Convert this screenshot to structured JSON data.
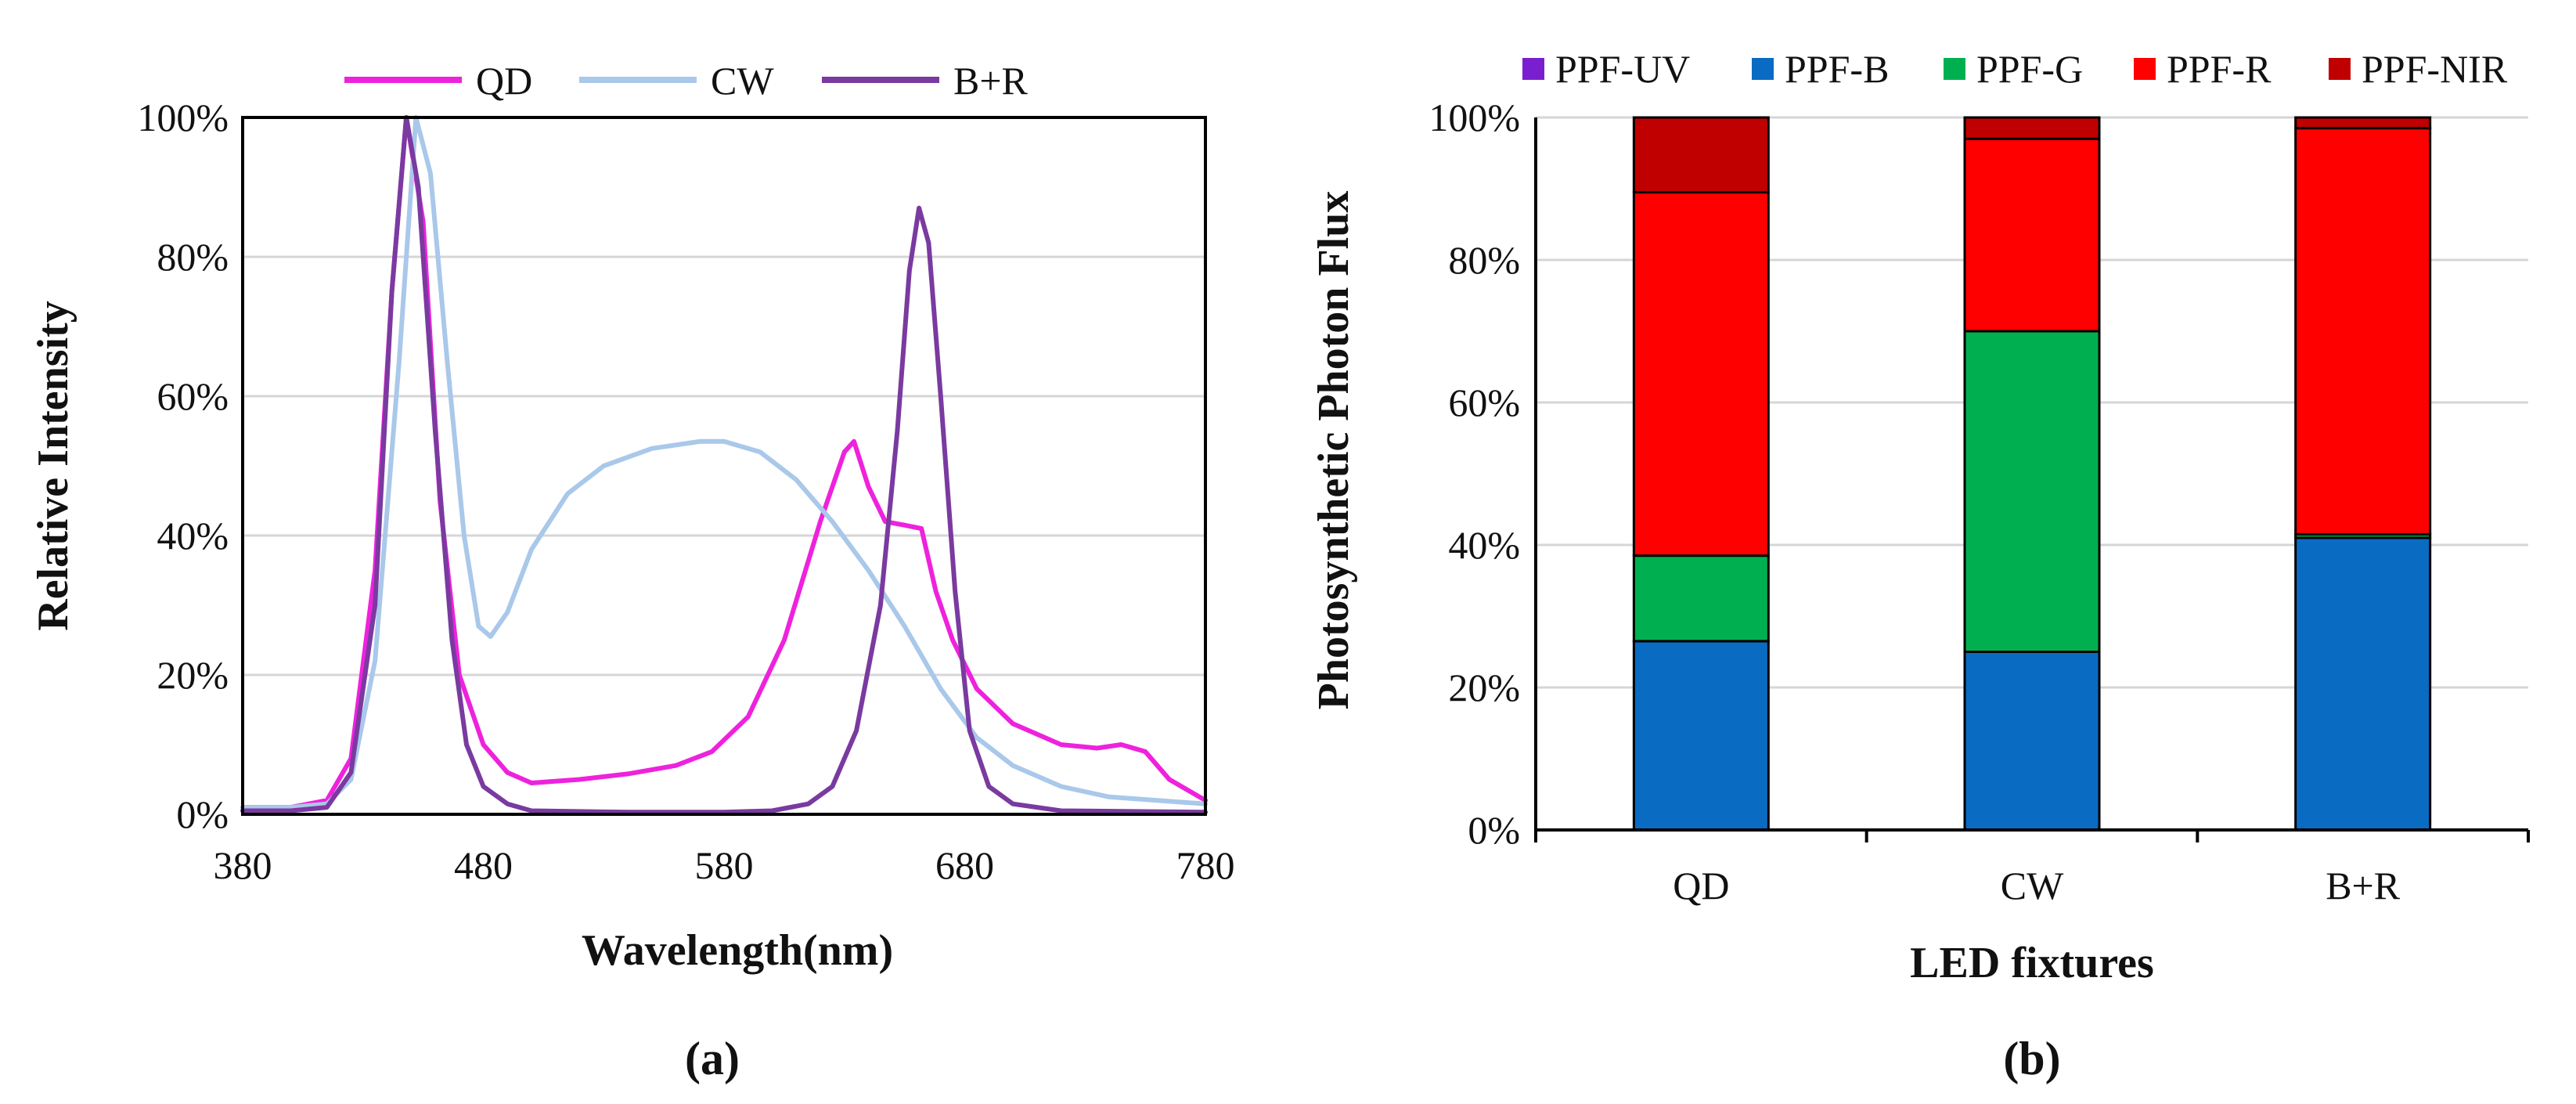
{
  "figure": {
    "caption_a": "(a)",
    "caption_b": "(b)"
  },
  "colors": {
    "qd": "#ee22dd",
    "cw": "#a9c8ea",
    "br": "#7a3aa0",
    "ppf_uv": "#7a1fd0",
    "ppf_b": "#0a6bc2",
    "ppf_g": "#00b050",
    "ppf_r": "#ff0000",
    "ppf_nir": "#c00000",
    "grid": "#d6d6d6",
    "axis": "#000000"
  },
  "chart_data": [
    {
      "type": "line",
      "title": "",
      "xlabel": "Wavelength(nm)",
      "ylabel": "Relative Intensity",
      "xlim": [
        380,
        780
      ],
      "ylim": [
        0,
        100
      ],
      "x_ticks": [
        "380",
        "480",
        "580",
        "680",
        "780"
      ],
      "y_ticks": [
        "0%",
        "20%",
        "40%",
        "60%",
        "80%",
        "100%"
      ],
      "grid": true,
      "legend": "top",
      "series": [
        {
          "name": "QD",
          "color_key": "qd",
          "points": [
            [
              380,
              1
            ],
            [
              400,
              1
            ],
            [
              415,
              2
            ],
            [
              425,
              8
            ],
            [
              435,
              35
            ],
            [
              442,
              75
            ],
            [
              448,
              100
            ],
            [
              455,
              85
            ],
            [
              462,
              45
            ],
            [
              470,
              20
            ],
            [
              480,
              10
            ],
            [
              490,
              6
            ],
            [
              500,
              4.5
            ],
            [
              520,
              5
            ],
            [
              540,
              5.8
            ],
            [
              560,
              7
            ],
            [
              575,
              9
            ],
            [
              590,
              14
            ],
            [
              605,
              25
            ],
            [
              620,
              42
            ],
            [
              630,
              52
            ],
            [
              634,
              53.5
            ],
            [
              640,
              47
            ],
            [
              647,
              42
            ],
            [
              655,
              41.5
            ],
            [
              662,
              41
            ],
            [
              668,
              32
            ],
            [
              675,
              25
            ],
            [
              685,
              18
            ],
            [
              700,
              13
            ],
            [
              720,
              10
            ],
            [
              735,
              9.5
            ],
            [
              745,
              10
            ],
            [
              755,
              9
            ],
            [
              765,
              5
            ],
            [
              780,
              2
            ]
          ]
        },
        {
          "name": "CW",
          "color_key": "cw",
          "points": [
            [
              380,
              1
            ],
            [
              400,
              1
            ],
            [
              415,
              1.5
            ],
            [
              425,
              5
            ],
            [
              435,
              22
            ],
            [
              445,
              65
            ],
            [
              452,
              100
            ],
            [
              458,
              92
            ],
            [
              465,
              65
            ],
            [
              472,
              40
            ],
            [
              478,
              27
            ],
            [
              483,
              25.5
            ],
            [
              490,
              29
            ],
            [
              500,
              38
            ],
            [
              515,
              46
            ],
            [
              530,
              50
            ],
            [
              550,
              52.5
            ],
            [
              570,
              53.5
            ],
            [
              580,
              53.5
            ],
            [
              595,
              52
            ],
            [
              610,
              48
            ],
            [
              625,
              42
            ],
            [
              640,
              35
            ],
            [
              655,
              27
            ],
            [
              670,
              18
            ],
            [
              685,
              11
            ],
            [
              700,
              7
            ],
            [
              720,
              4
            ],
            [
              740,
              2.5
            ],
            [
              760,
              2
            ],
            [
              780,
              1.5
            ]
          ]
        },
        {
          "name": "B+R",
          "color_key": "br",
          "points": [
            [
              380,
              0.5
            ],
            [
              400,
              0.5
            ],
            [
              415,
              1
            ],
            [
              425,
              6
            ],
            [
              435,
              30
            ],
            [
              442,
              75
            ],
            [
              448,
              100
            ],
            [
              453,
              90
            ],
            [
              460,
              55
            ],
            [
              467,
              25
            ],
            [
              473,
              10
            ],
            [
              480,
              4
            ],
            [
              490,
              1.5
            ],
            [
              500,
              0.5
            ],
            [
              540,
              0.3
            ],
            [
              580,
              0.3
            ],
            [
              600,
              0.5
            ],
            [
              615,
              1.5
            ],
            [
              625,
              4
            ],
            [
              635,
              12
            ],
            [
              645,
              30
            ],
            [
              652,
              55
            ],
            [
              657,
              78
            ],
            [
              661,
              87
            ],
            [
              665,
              82
            ],
            [
              670,
              60
            ],
            [
              676,
              32
            ],
            [
              682,
              12
            ],
            [
              690,
              4
            ],
            [
              700,
              1.5
            ],
            [
              720,
              0.5
            ],
            [
              780,
              0.3
            ]
          ]
        }
      ]
    },
    {
      "type": "bar",
      "stacked": true,
      "xlabel": "LED fixtures",
      "ylabel": "Photosynthetic Photon Flux",
      "ylim": [
        0,
        100
      ],
      "y_ticks": [
        "0%",
        "20%",
        "40%",
        "60%",
        "80%",
        "100%"
      ],
      "grid": true,
      "legend": "top",
      "categories": [
        "QD",
        "CW",
        "B+R"
      ],
      "series": [
        {
          "name": "PPF-UV",
          "color_key": "ppf_uv",
          "values": [
            0,
            0,
            0
          ]
        },
        {
          "name": "PPF-B",
          "color_key": "ppf_b",
          "values": [
            26.5,
            25,
            41
          ]
        },
        {
          "name": "PPF-G",
          "color_key": "ppf_g",
          "values": [
            12,
            45,
            0.5
          ]
        },
        {
          "name": "PPF-R",
          "color_key": "ppf_r",
          "values": [
            51,
            27,
            57
          ]
        },
        {
          "name": "PPF-NIR",
          "color_key": "ppf_nir",
          "values": [
            10.5,
            3,
            1.5
          ]
        }
      ]
    }
  ]
}
